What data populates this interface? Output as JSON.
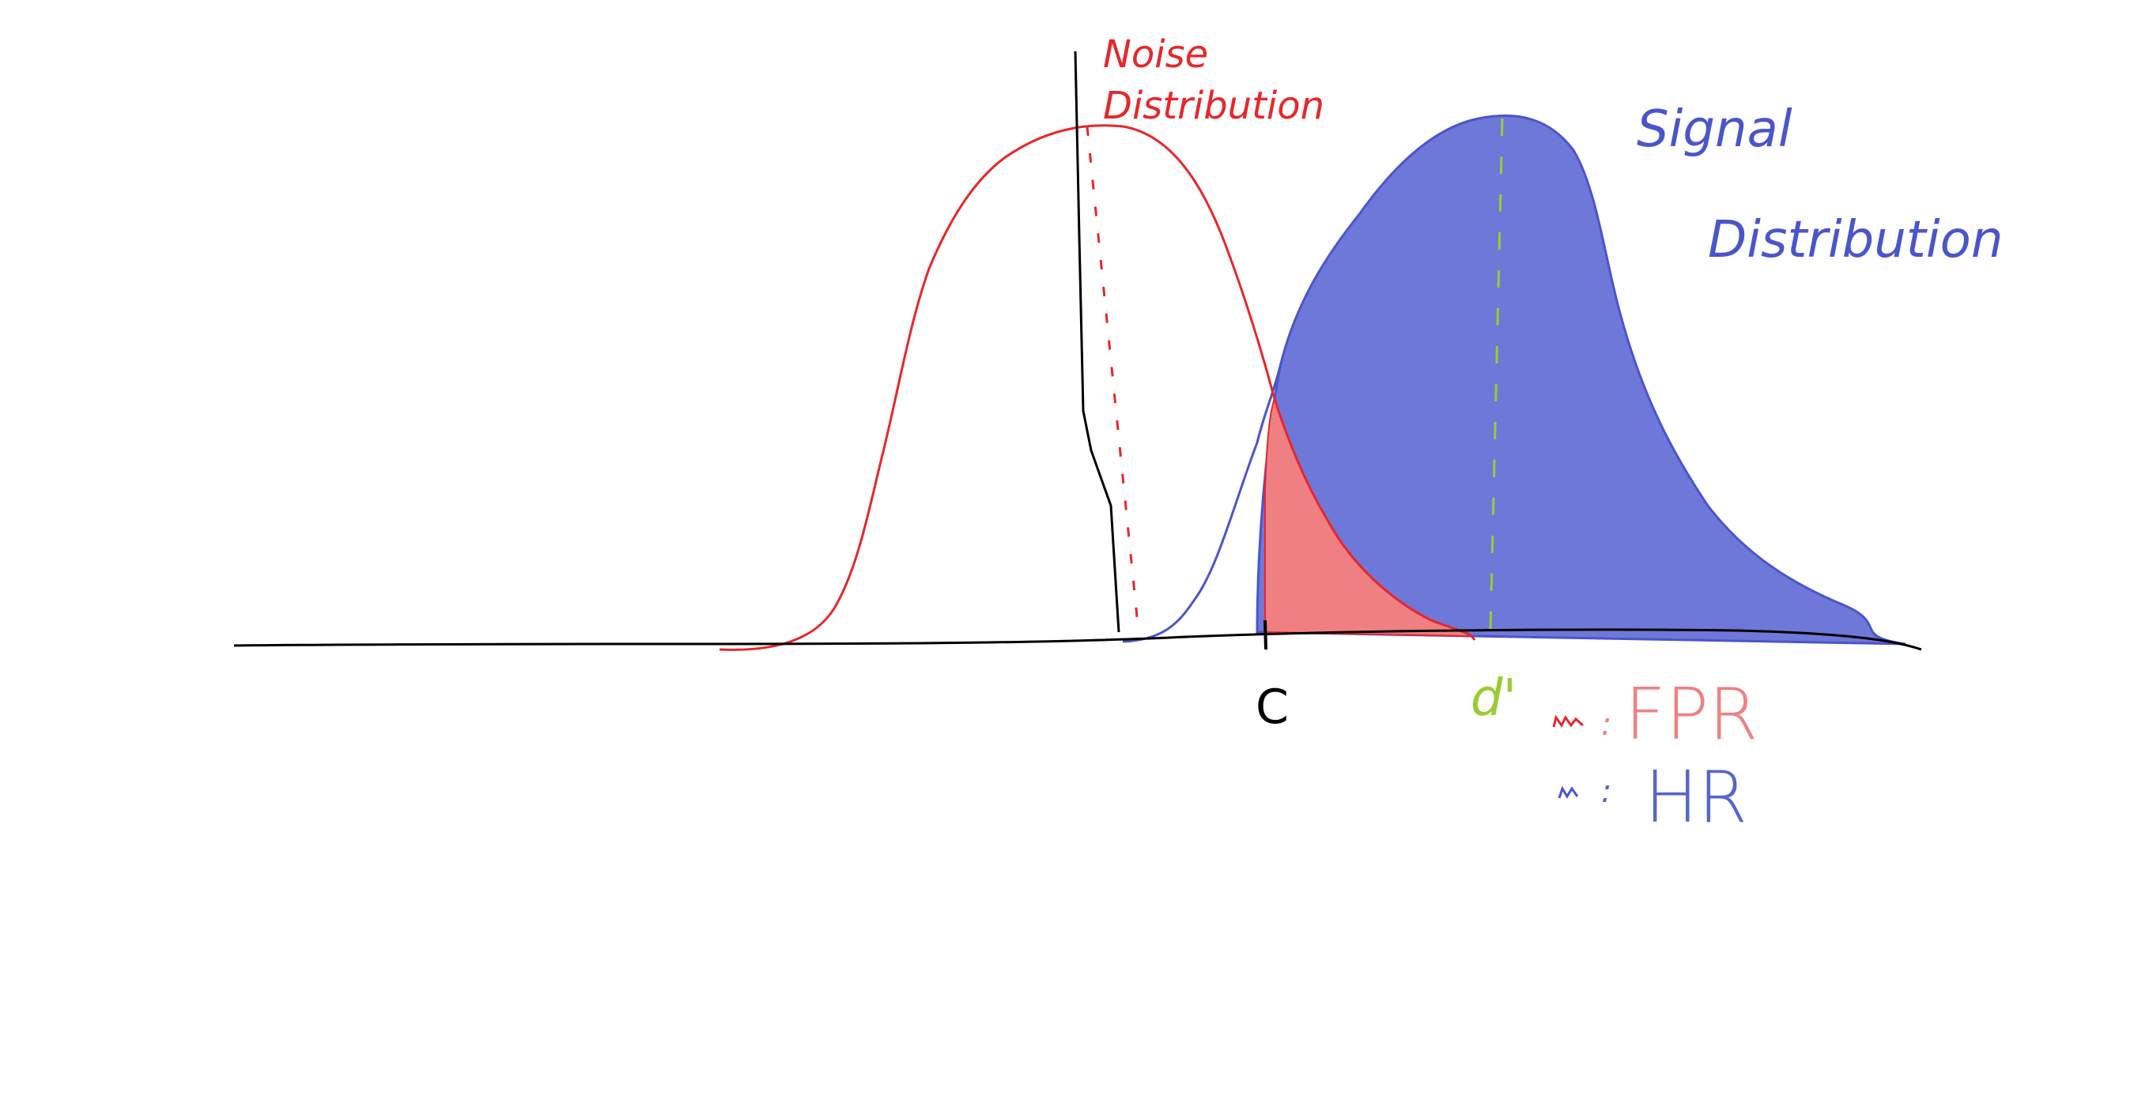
{
  "colors": {
    "axis": "#000000",
    "noise": "#e8262a",
    "signal": "#4a55cc",
    "signal_fill": "#6e78d8",
    "fpr_fill": "#f07f82",
    "dprime": "#9acd32",
    "fpr_label": "#f08080",
    "hr_label": "#5566cc"
  },
  "labels": {
    "noise_line1": "Noise",
    "noise_line2": "Distribution",
    "signal_line1": "Signal",
    "signal_line2": "Distribution",
    "criterion": "C",
    "dprime": "d'"
  },
  "legend": {
    "fpr": {
      "swatch_icon": "red-scribble",
      "separator": ":",
      "text": "FPR"
    },
    "hr": {
      "swatch_icon": "blue-scribble",
      "separator": ":",
      "text": "HR"
    }
  }
}
